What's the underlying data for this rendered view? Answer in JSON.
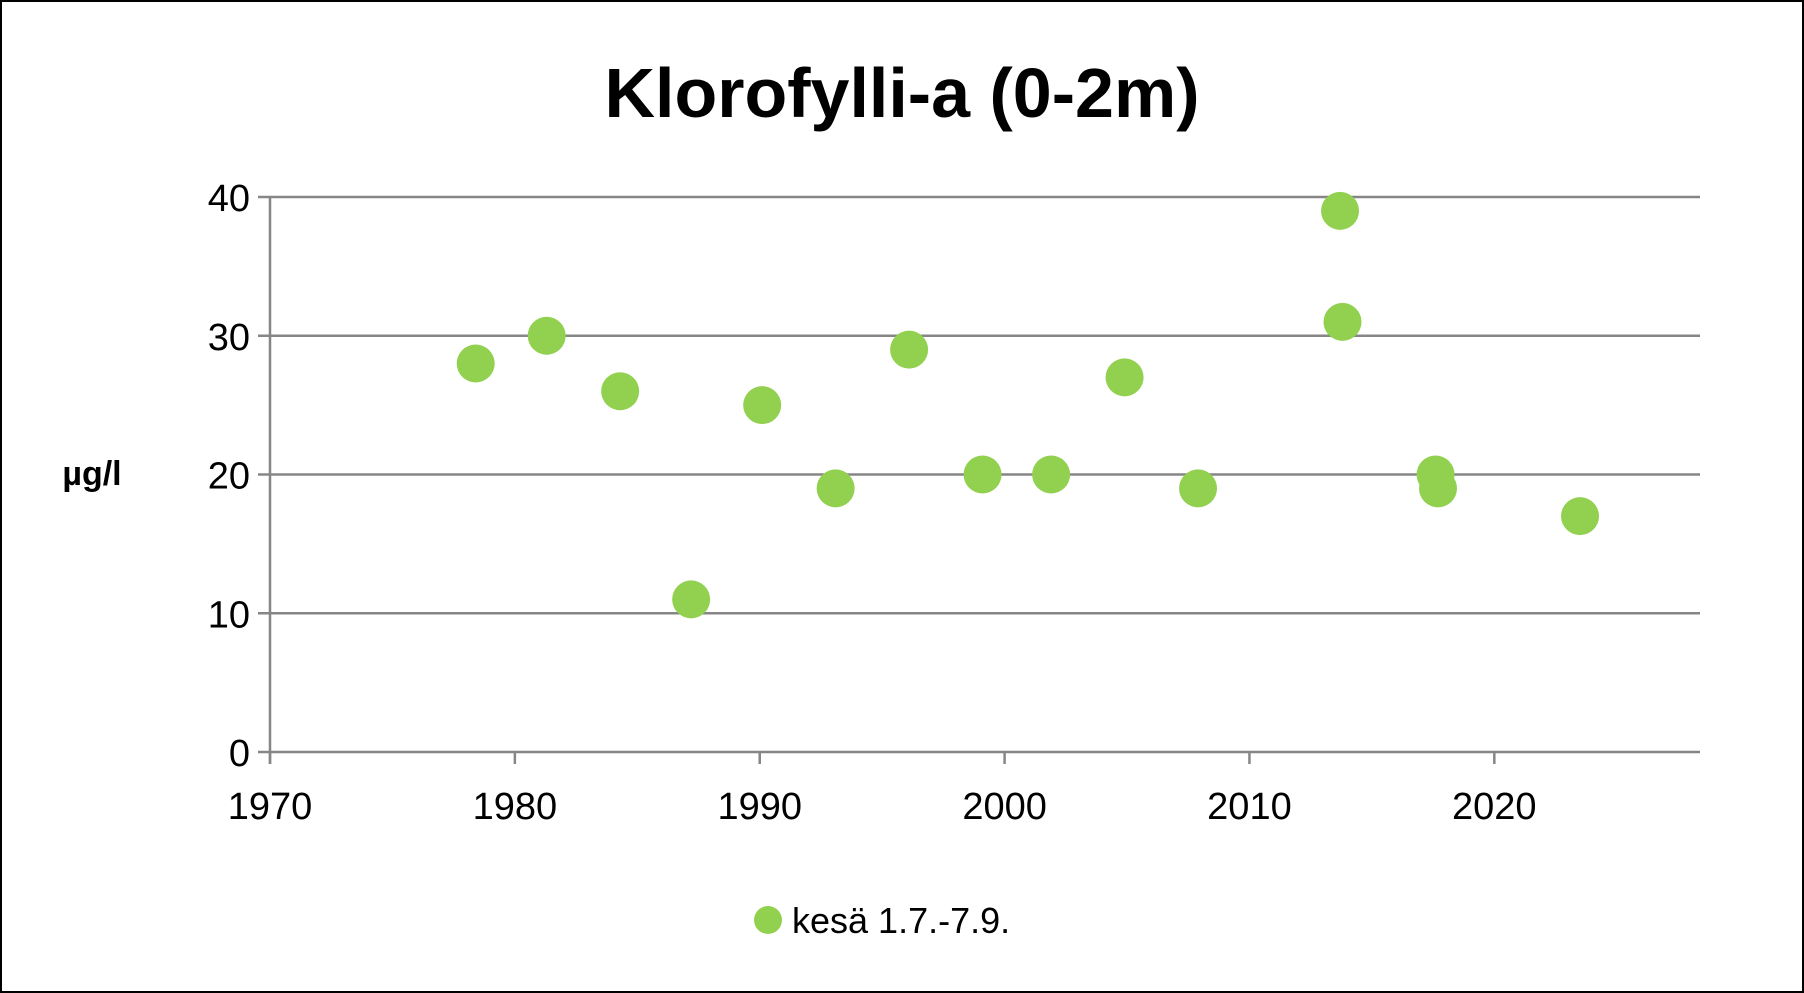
{
  "chart_data": {
    "type": "scatter",
    "title": "Klorofylli-a (0-2m)",
    "xlabel": "",
    "ylabel": "µg/l",
    "xlim": [
      1970,
      2028.4
    ],
    "ylim": [
      0,
      40
    ],
    "x_ticks": [
      1970,
      1980,
      1990,
      2000,
      2010,
      2020
    ],
    "y_ticks": [
      0,
      10,
      20,
      30,
      40
    ],
    "grid": "horizontal",
    "legend_position": "bottom",
    "color": "#92d050",
    "series": [
      {
        "name": "kesä 1.7.-7.9.",
        "x": [
          1978.4,
          1981.3,
          1984.3,
          1987.2,
          1990.1,
          1993.1,
          1996.1,
          1999.1,
          2001.9,
          2004.9,
          2007.9,
          2013.7,
          2013.8,
          2017.6,
          2017.7,
          2023.5
        ],
        "y": [
          28,
          30,
          26,
          11,
          25,
          19,
          29,
          20,
          20,
          27,
          19,
          39,
          31,
          20,
          19,
          17
        ]
      }
    ]
  }
}
